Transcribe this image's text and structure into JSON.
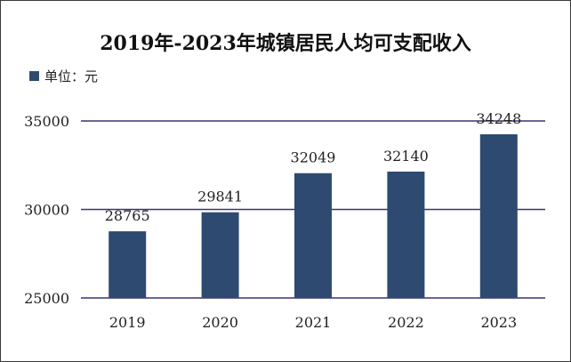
{
  "chart_data": {
    "type": "bar",
    "title": "2019年-2023年城镇居民人均可支配收入",
    "unit_label": "单位：元",
    "categories": [
      "2019",
      "2020",
      "2021",
      "2022",
      "2023"
    ],
    "values": [
      28765,
      29841,
      32049,
      32140,
      34248
    ],
    "data_labels": [
      "28765",
      "29841",
      "32049",
      "32140",
      "34248"
    ],
    "yticks": [
      {
        "value": 25000,
        "label": "25000"
      },
      {
        "value": 30000,
        "label": "30000"
      },
      {
        "value": 35000,
        "label": "35000"
      }
    ],
    "ylim": [
      25000,
      35000
    ],
    "grid": true,
    "xlabel": "",
    "ylabel": "",
    "colors": {
      "bar": "#2e4a70",
      "grid": "#3b3470",
      "text": "#222222"
    }
  }
}
